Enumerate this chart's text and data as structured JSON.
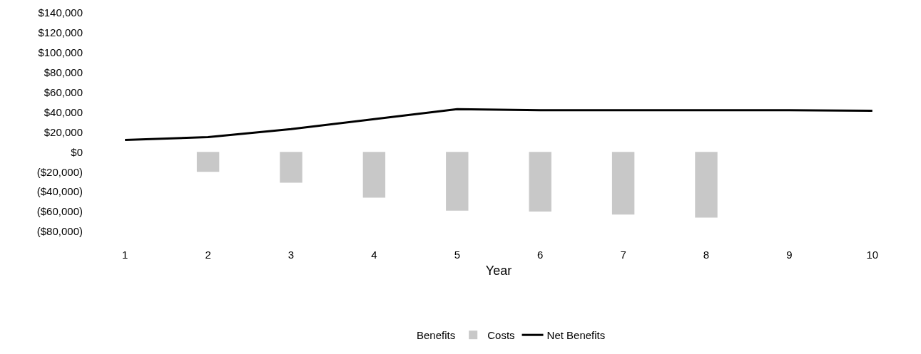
{
  "chart_data": {
    "type": "bar",
    "xlabel": "Year",
    "categories": [
      "1",
      "2",
      "3",
      "4",
      "5",
      "6",
      "7",
      "8",
      "9",
      "10"
    ],
    "series": [
      {
        "name": "Benefits",
        "values": [
          null,
          null,
          null,
          null,
          null,
          null,
          null,
          null,
          null,
          null
        ]
      },
      {
        "name": "Costs",
        "color": "#c8c8c8",
        "values": [
          null,
          -20000,
          -31000,
          -46000,
          -59000,
          -60000,
          -63000,
          -66000,
          null,
          null
        ]
      },
      {
        "name": "Net Benefits",
        "type": "line",
        "color": "#000000",
        "values": [
          12000,
          15000,
          23000,
          33000,
          43000,
          42000,
          42000,
          42000,
          42000,
          41500
        ]
      }
    ],
    "ylim": [
      -80000,
      140000
    ],
    "yticks": [
      {
        "value": -80000,
        "label": "($80,000)"
      },
      {
        "value": -60000,
        "label": "($60,000)"
      },
      {
        "value": -40000,
        "label": "($40,000)"
      },
      {
        "value": -20000,
        "label": "($20,000)"
      },
      {
        "value": 0,
        "label": "$0"
      },
      {
        "value": 20000,
        "label": "$20,000"
      },
      {
        "value": 40000,
        "label": "$40,000"
      },
      {
        "value": 60000,
        "label": "$60,000"
      },
      {
        "value": 80000,
        "label": "$80,000"
      },
      {
        "value": 100000,
        "label": "$100,000"
      },
      {
        "value": 120000,
        "label": "$120,000"
      },
      {
        "value": 140000,
        "label": "$140,000"
      }
    ],
    "grid": false,
    "legend": "bottom",
    "marker": "none",
    "line_style": "solid"
  }
}
